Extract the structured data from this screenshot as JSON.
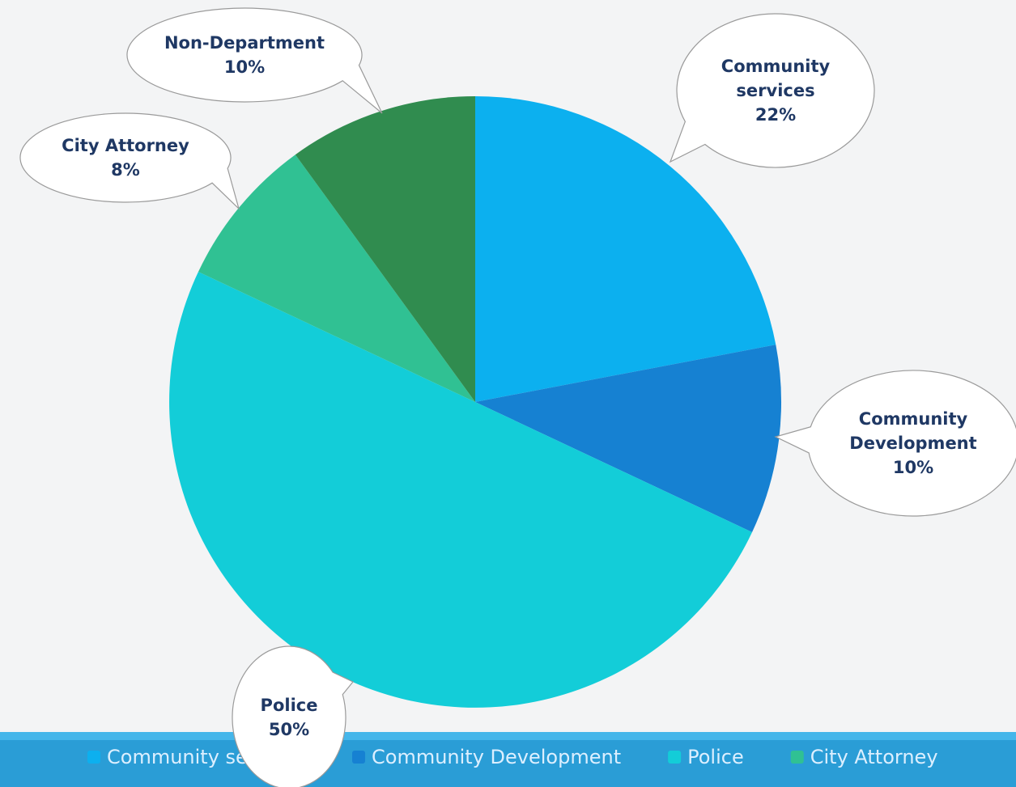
{
  "chart_data": {
    "type": "pie",
    "categories": [
      "Community services",
      "Community Development",
      "Police",
      "City Attorney",
      "Non-Department"
    ],
    "values": [
      22,
      10,
      50,
      8,
      10
    ],
    "value_labels": [
      "22%",
      "10%",
      "50%",
      "8%",
      "10%"
    ],
    "colors": [
      "#0cb0ef",
      "#1681d2",
      "#13cdd8",
      "#30c193",
      "#308c4f"
    ]
  }
}
